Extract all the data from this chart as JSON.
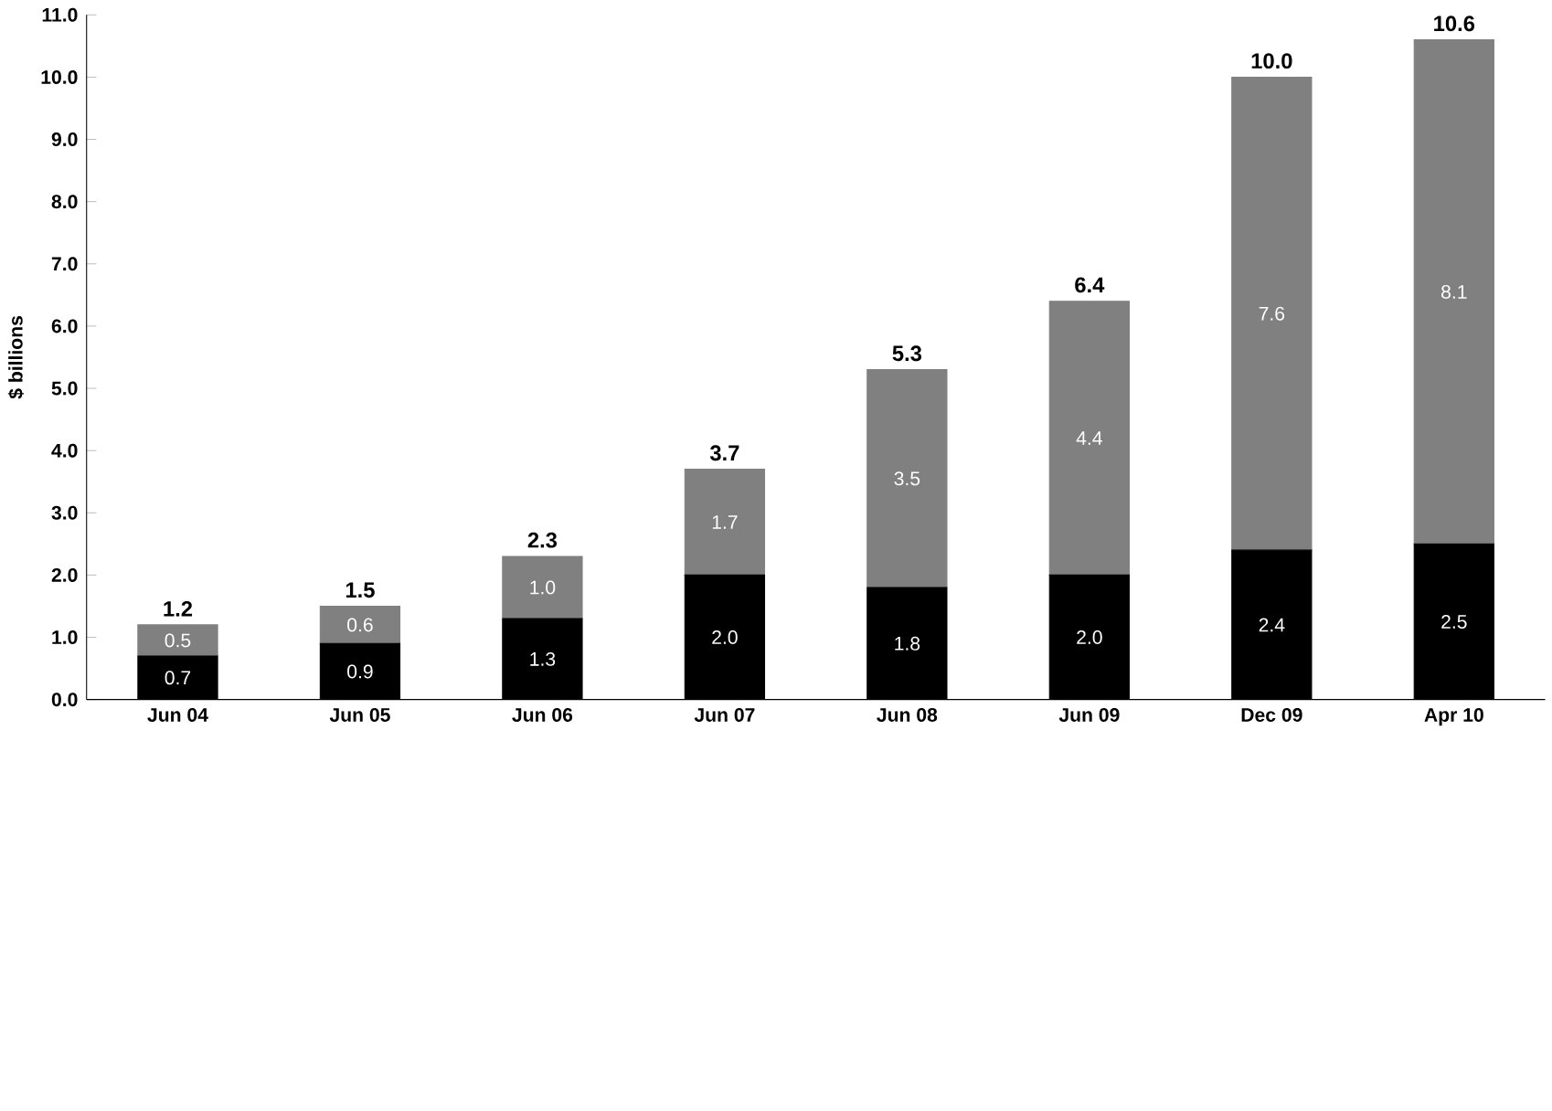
{
  "chart_data": {
    "type": "bar",
    "stacked": true,
    "ylabel": "$ billions",
    "categories": [
      "Jun 04",
      "Jun 05",
      "Jun 06",
      "Jun 07",
      "Jun 08",
      "Jun 09",
      "Dec 09",
      "Apr 10"
    ],
    "series": [
      {
        "color": "#000000",
        "values": [
          0.7,
          0.9,
          1.3,
          2.0,
          1.8,
          2.0,
          2.4,
          2.5
        ],
        "value_labels": [
          "0.7",
          "0.9",
          "1.3",
          "2.0",
          "1.8",
          "2.0",
          "2.4",
          "2.5"
        ]
      },
      {
        "color": "#808080",
        "values": [
          0.5,
          0.6,
          1.0,
          1.7,
          3.5,
          4.4,
          7.6,
          8.1
        ],
        "value_labels": [
          "0.5",
          "0.6",
          "1.0",
          "1.7",
          "3.5",
          "4.4",
          "7.6",
          "8.1"
        ]
      }
    ],
    "totals": [
      "1.2",
      "1.5",
      "2.3",
      "3.7",
      "5.3",
      "6.4",
      "10.0",
      "10.6"
    ],
    "ylim": [
      0,
      11
    ],
    "yticks": [
      {
        "value": 0,
        "label": "0.0"
      },
      {
        "value": 1,
        "label": "1.0"
      },
      {
        "value": 2,
        "label": "2.0"
      },
      {
        "value": 3,
        "label": "3.0"
      },
      {
        "value": 4,
        "label": "4.0"
      },
      {
        "value": 5,
        "label": "5.0"
      },
      {
        "value": 6,
        "label": "6.0"
      },
      {
        "value": 7,
        "label": "7.0"
      },
      {
        "value": 8,
        "label": "8.0"
      },
      {
        "value": 9,
        "label": "9.0"
      },
      {
        "value": 10,
        "label": "10.0"
      },
      {
        "value": 11,
        "label": "11.0"
      }
    ],
    "grid": false
  }
}
